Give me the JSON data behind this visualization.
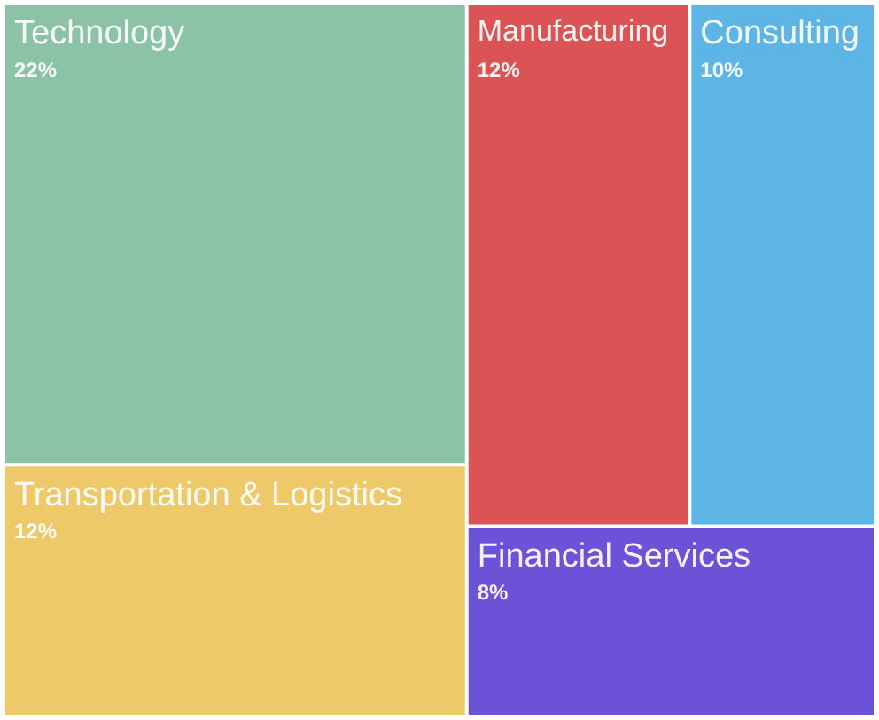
{
  "chart_data": {
    "type": "other",
    "categories": [
      "Technology",
      "Transportation & Logistics",
      "Manufacturing",
      "Consulting",
      "Financial Services"
    ],
    "values": [
      22,
      12,
      12,
      10,
      8
    ],
    "value_labels": [
      "22%",
      "12%",
      "12%",
      "10%",
      "8%"
    ],
    "colors": [
      "#8cc3a6",
      "#eec96a",
      "#db5355",
      "#5cb5e4",
      "#6b52d7"
    ]
  }
}
